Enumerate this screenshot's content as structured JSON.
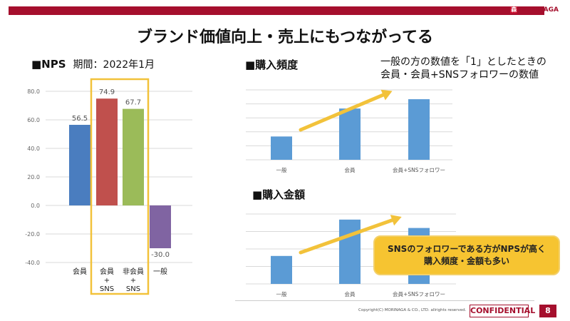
{
  "header": {
    "brand": "MORINAGA",
    "brand_mark": "森",
    "title": "ブランド価値向上・売上にもつながってる"
  },
  "note": {
    "line1": "一般の方の数値を「1」としたときの",
    "line2": "会員・会員+SNSフォロワーの数値"
  },
  "callout": {
    "line1": "SNSのフォロワーである方がNPSが高く",
    "line2": "購入頻度・金額も多い"
  },
  "footer": {
    "copyright": "Copyright(C) MORINAGA & CO., LTD. allrights reserved.",
    "confidential": "CONFIDENTIAL",
    "page": "8"
  },
  "colors": {
    "brand": "#a50f2d",
    "highlight_box": "#f2c23a",
    "arrow": "#f2c23a",
    "bar_blue": "#5b9bd5"
  },
  "chart_data": [
    {
      "type": "bar",
      "title": "■NPS",
      "subtitle": "期間：2022年1月",
      "categories": [
        "会員",
        "会員\n+\nSNS",
        "非会員\n+\nSNS",
        "一般"
      ],
      "category_lines": [
        [
          "会員"
        ],
        [
          "会員",
          "+",
          "SNS"
        ],
        [
          "非会員",
          "+",
          "SNS"
        ],
        [
          "一般"
        ]
      ],
      "values": [
        56.5,
        74.9,
        67.7,
        -30.0
      ],
      "value_labels": [
        "56.5",
        "74.9",
        "67.7",
        "-30.0"
      ],
      "bar_colors": [
        "#4a7dbf",
        "#c0504d",
        "#9bbb59",
        "#8064a2"
      ],
      "ylim": [
        -40,
        80
      ],
      "yticks": [
        80,
        60,
        40,
        20,
        0,
        -20,
        -40
      ],
      "ytick_labels": [
        "80.0",
        "60.0",
        "40.0",
        "20.0",
        "0.0",
        "-20.0",
        "-40.0"
      ],
      "grid": true,
      "highlighted_categories": [
        "会員\n+\nSNS",
        "非会員\n+\nSNS"
      ],
      "xlabel": "",
      "ylabel": ""
    },
    {
      "type": "bar",
      "title": "■購入頻度",
      "categories": [
        "一般",
        "会員",
        "会員+SNSフォロワー"
      ],
      "values": [
        1.0,
        2.2,
        2.6
      ],
      "ylim": [
        0,
        3.0
      ],
      "grid": true,
      "annotation": "trend arrow (upward)",
      "xlabel": "",
      "ylabel": ""
    },
    {
      "type": "bar",
      "title": "■購入金額",
      "categories": [
        "一般",
        "会員",
        "会員+SNSフォロワー"
      ],
      "values": [
        1.0,
        2.3,
        2.0
      ],
      "ylim": [
        0,
        2.5
      ],
      "grid": true,
      "annotation": "trend arrow (upward)",
      "xlabel": "",
      "ylabel": ""
    }
  ]
}
